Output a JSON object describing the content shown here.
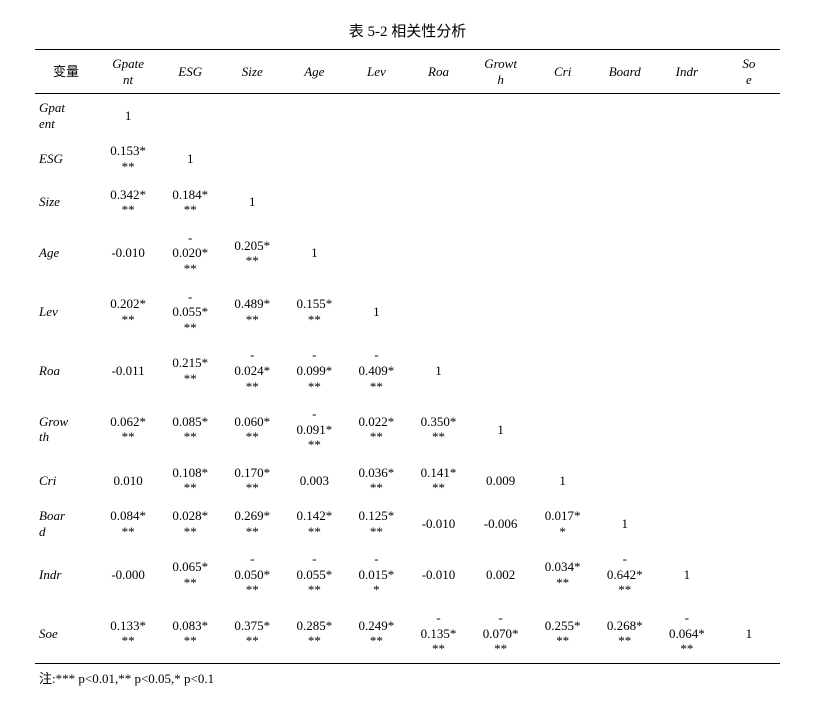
{
  "title": "表 5-2  相关性分析",
  "header_first": "变量",
  "footnote": "注:*** p<0.01,** p<0.05,* p<0.1",
  "vars": [
    "Gpatent",
    "ESG",
    "Size",
    "Age",
    "Lev",
    "Roa",
    "Growth",
    "Cri",
    "Board",
    "Indr",
    "Soe"
  ],
  "header_display": [
    "Gpate\nnt",
    "ESG",
    "Size",
    "Age",
    "Lev",
    "Roa",
    "Growt\nh",
    "Cri",
    "Board",
    "Indr",
    "So\ne"
  ],
  "rowvar_display": [
    "Gpat\nent",
    "ESG",
    "Size",
    "Age",
    "Lev",
    "Roa",
    "Grow\nth",
    "Cri",
    "Boar\nd",
    "Indr",
    "Soe"
  ],
  "matrix": [
    [
      "1",
      "",
      "",
      "",
      "",
      "",
      "",
      "",
      "",
      "",
      ""
    ],
    [
      "0.153*\n**",
      "1",
      "",
      "",
      "",
      "",
      "",
      "",
      "",
      "",
      ""
    ],
    [
      "0.342*\n**",
      "0.184*\n**",
      "1",
      "",
      "",
      "",
      "",
      "",
      "",
      "",
      ""
    ],
    [
      "-0.010",
      "-\n0.020*\n**",
      "0.205*\n**",
      "1",
      "",
      "",
      "",
      "",
      "",
      "",
      ""
    ],
    [
      "0.202*\n**",
      "-\n0.055*\n**",
      "0.489*\n**",
      "0.155*\n**",
      "1",
      "",
      "",
      "",
      "",
      "",
      ""
    ],
    [
      "-0.011",
      "0.215*\n**",
      "-\n0.024*\n**",
      "-\n0.099*\n**",
      "-\n0.409*\n**",
      "1",
      "",
      "",
      "",
      "",
      ""
    ],
    [
      "0.062*\n**",
      "0.085*\n**",
      "0.060*\n**",
      "-\n0.091*\n**",
      "0.022*\n**",
      "0.350*\n**",
      "1",
      "",
      "",
      "",
      ""
    ],
    [
      "0.010",
      "0.108*\n**",
      "0.170*\n**",
      "0.003",
      "0.036*\n**",
      "0.141*\n**",
      "0.009",
      "1",
      "",
      "",
      ""
    ],
    [
      "0.084*\n**",
      "0.028*\n**",
      "0.269*\n**",
      "0.142*\n**",
      "0.125*\n**",
      "-0.010",
      "-0.006",
      "0.017*\n*",
      "1",
      "",
      ""
    ],
    [
      "-0.000",
      "0.065*\n**",
      "-\n0.050*\n**",
      "-\n0.055*\n**",
      "-\n0.015*\n*",
      "-0.010",
      "0.002",
      "0.034*\n**",
      "-\n0.642*\n**",
      "1",
      ""
    ],
    [
      "0.133*\n**",
      "0.083*\n**",
      "0.375*\n**",
      "0.285*\n**",
      "0.249*\n**",
      "-\n0.135*\n**",
      "-\n0.070*\n**",
      "0.255*\n**",
      "0.268*\n**",
      "-\n0.064*\n**",
      "1"
    ]
  ],
  "colors": {
    "text": "#000000",
    "background": "#ffffff",
    "rule": "#000000"
  },
  "font": {
    "family": "Times New Roman / SimSun",
    "base_size_pt": 13,
    "title_size_pt": 15
  }
}
